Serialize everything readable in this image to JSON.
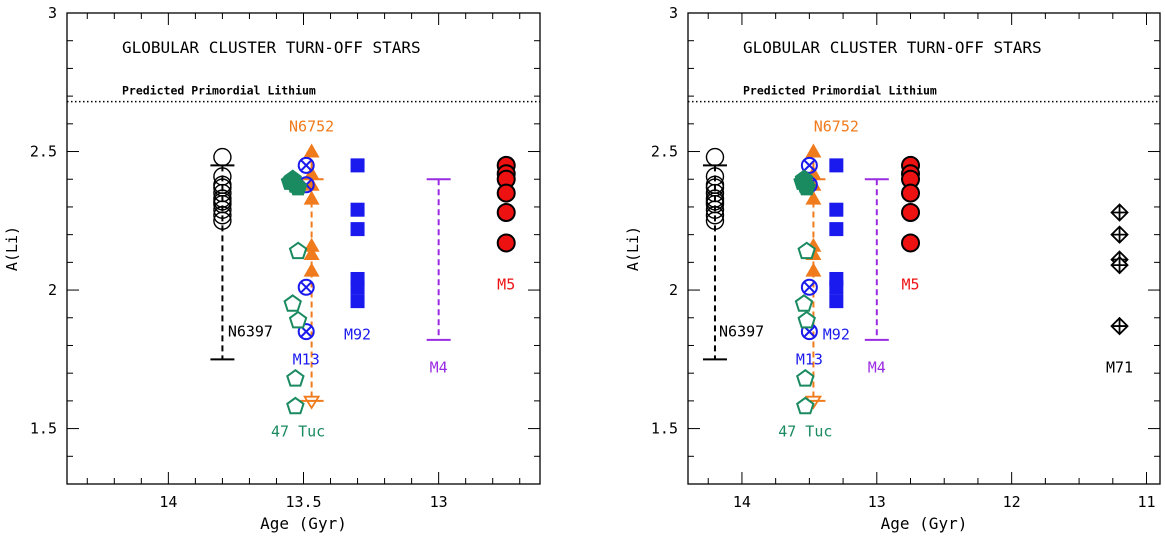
{
  "colors": {
    "axis": "#000000",
    "NGC6397": "#000000",
    "NGC6752": "#f07b1d",
    "M13": "#1a1aee",
    "M92": "#1a1aee",
    "M4": "#9a2be2",
    "M5": "#ee1111",
    "47Tuc": "#1a8a60",
    "M71": "#000000"
  },
  "chart_data": [
    {
      "type": "scatter",
      "title": "GLOBULAR CLUSTER TURN-OFF STARS",
      "xlabel": "Age (Gyr)",
      "ylabel": "A(Li)",
      "xlim": [
        14.375,
        12.625
      ],
      "ylim": [
        1.3,
        3.0
      ],
      "x_reversed": true,
      "x_ticks": [
        14,
        13.5,
        13
      ],
      "y_ticks": [
        1.5,
        2,
        2.5,
        3
      ],
      "grid": false,
      "reference_line": {
        "label": "Predicted Primordial Lithium",
        "y": 2.68
      },
      "series": [
        {
          "name": "N6397",
          "marker": "open-circle",
          "color_key": "NGC6397",
          "x": [
            13.8,
            13.8,
            13.8,
            13.8,
            13.8,
            13.8,
            13.8,
            13.8,
            13.8,
            13.8,
            13.8
          ],
          "y": [
            2.48,
            2.41,
            2.37,
            2.35,
            2.33,
            2.31,
            2.29,
            2.27,
            2.25,
            2.38,
            2.32
          ],
          "errorbar": {
            "x": 13.8,
            "lo": 1.75,
            "hi": 2.45,
            "style": "dashed"
          },
          "label": {
            "text": "N6397",
            "x": 13.78,
            "y": 1.85
          }
        },
        {
          "name": "N6752",
          "marker": "filled-triangle",
          "color_key": "NGC6752",
          "x": [
            13.47,
            13.47,
            13.47,
            13.47,
            13.47,
            13.47,
            13.47
          ],
          "y": [
            2.5,
            2.42,
            2.38,
            2.33,
            2.16,
            2.13,
            2.07
          ],
          "extra_marker": {
            "shape": "open-triangle-down",
            "x": 13.47,
            "y": 1.6
          },
          "errorbar": {
            "x": 13.47,
            "lo": 1.6,
            "hi": 2.5,
            "style": "dashed",
            "cap_y": 2.4
          },
          "label": {
            "text": "N6752",
            "x": 13.47,
            "y": 2.59
          }
        },
        {
          "name": "M13",
          "marker": "circle-x",
          "color_key": "M13",
          "x": [
            13.49,
            13.49,
            13.49,
            13.49
          ],
          "y": [
            2.45,
            2.38,
            2.01,
            1.85
          ],
          "label": {
            "text": "M13",
            "x": 13.49,
            "y": 1.75
          }
        },
        {
          "name": "M92",
          "marker": "filled-square",
          "color_key": "M92",
          "x": [
            13.3,
            13.3,
            13.3,
            13.3,
            13.3,
            13.3
          ],
          "y": [
            2.45,
            2.29,
            2.22,
            2.04,
            2.01,
            1.96
          ],
          "label": {
            "text": "M92",
            "x": 13.3,
            "y": 1.84
          }
        },
        {
          "name": "M4",
          "marker": "none",
          "color_key": "M4",
          "errorbar": {
            "x": 13.0,
            "lo": 1.82,
            "hi": 2.4,
            "style": "dashed"
          },
          "label": {
            "text": "M4",
            "x": 13.0,
            "y": 1.72
          }
        },
        {
          "name": "M5",
          "marker": "filled-circle",
          "color_key": "M5",
          "x": [
            12.75,
            12.75,
            12.75,
            12.75,
            12.75,
            12.75
          ],
          "y": [
            2.45,
            2.42,
            2.4,
            2.35,
            2.28,
            2.17
          ],
          "label": {
            "text": "M5",
            "x": 12.75,
            "y": 2.02
          }
        },
        {
          "name": "47 Tuc",
          "marker": "pentagon",
          "color_key": "47Tuc",
          "x": [
            13.54,
            13.53,
            13.55,
            13.52,
            13.52,
            13.54,
            13.52,
            13.53,
            13.53
          ],
          "y": [
            2.4,
            2.38,
            2.39,
            2.37,
            2.14,
            1.95,
            1.89,
            1.68,
            1.58
          ],
          "filled": [
            true,
            true,
            true,
            true,
            false,
            false,
            false,
            false,
            false
          ],
          "label": {
            "text": "47 Tuc",
            "x": 13.52,
            "y": 1.49
          }
        }
      ]
    },
    {
      "type": "scatter",
      "title": "GLOBULAR CLUSTER TURN-OFF STARS",
      "xlabel": "Age (Gyr)",
      "ylabel": "A(Li)",
      "xlim": [
        14.4,
        10.9
      ],
      "ylim": [
        1.3,
        3.0
      ],
      "x_reversed": true,
      "x_ticks": [
        14,
        13,
        12,
        11
      ],
      "y_ticks": [
        1.5,
        2,
        2.5,
        3
      ],
      "grid": false,
      "reference_line": {
        "label": "Predicted Primordial Lithium",
        "y": 2.68
      },
      "series": [
        {
          "name": "N6397",
          "marker": "open-circle",
          "color_key": "NGC6397",
          "x": [
            14.2,
            14.2,
            14.2,
            14.2,
            14.2,
            14.2,
            14.2,
            14.2,
            14.2,
            14.2,
            14.2
          ],
          "y": [
            2.48,
            2.41,
            2.37,
            2.35,
            2.33,
            2.31,
            2.29,
            2.27,
            2.25,
            2.38,
            2.32
          ],
          "errorbar": {
            "x": 14.2,
            "lo": 1.75,
            "hi": 2.45,
            "style": "dashed"
          },
          "label": {
            "text": "N6397",
            "x": 14.17,
            "y": 1.85
          }
        },
        {
          "name": "N6752",
          "marker": "filled-triangle",
          "color_key": "NGC6752",
          "x": [
            13.47,
            13.47,
            13.47,
            13.47,
            13.47,
            13.47,
            13.47
          ],
          "y": [
            2.5,
            2.42,
            2.38,
            2.33,
            2.16,
            2.13,
            2.07
          ],
          "extra_marker": {
            "shape": "open-triangle-down",
            "x": 13.47,
            "y": 1.6
          },
          "errorbar": {
            "x": 13.47,
            "lo": 1.6,
            "hi": 2.5,
            "style": "dashed",
            "cap_y": 2.4
          },
          "label": {
            "text": "N6752",
            "x": 13.3,
            "y": 2.59
          }
        },
        {
          "name": "M13",
          "marker": "circle-x",
          "color_key": "M13",
          "x": [
            13.5,
            13.5,
            13.5,
            13.5
          ],
          "y": [
            2.45,
            2.38,
            2.01,
            1.85
          ],
          "label": {
            "text": "M13",
            "x": 13.5,
            "y": 1.75
          }
        },
        {
          "name": "M92",
          "marker": "filled-square",
          "color_key": "M92",
          "x": [
            13.3,
            13.3,
            13.3,
            13.3,
            13.3,
            13.3
          ],
          "y": [
            2.45,
            2.29,
            2.22,
            2.04,
            2.01,
            1.96
          ],
          "label": {
            "text": "M92",
            "x": 13.3,
            "y": 1.84
          }
        },
        {
          "name": "M4",
          "marker": "none",
          "color_key": "M4",
          "errorbar": {
            "x": 13.0,
            "lo": 1.82,
            "hi": 2.4,
            "style": "dashed"
          },
          "label": {
            "text": "M4",
            "x": 13.0,
            "y": 1.72
          }
        },
        {
          "name": "M5",
          "marker": "filled-circle",
          "color_key": "M5",
          "x": [
            12.75,
            12.75,
            12.75,
            12.75,
            12.75,
            12.75
          ],
          "y": [
            2.45,
            2.42,
            2.4,
            2.35,
            2.28,
            2.17
          ],
          "label": {
            "text": "M5",
            "x": 12.75,
            "y": 2.02
          }
        },
        {
          "name": "47 Tuc",
          "marker": "pentagon",
          "color_key": "47Tuc",
          "x": [
            13.54,
            13.53,
            13.55,
            13.52,
            13.52,
            13.54,
            13.52,
            13.53,
            13.53
          ],
          "y": [
            2.4,
            2.38,
            2.39,
            2.37,
            2.14,
            1.95,
            1.89,
            1.68,
            1.58
          ],
          "filled": [
            true,
            true,
            true,
            true,
            false,
            false,
            false,
            false,
            false
          ],
          "label": {
            "text": "47 Tuc",
            "x": 13.53,
            "y": 1.49
          }
        },
        {
          "name": "M71",
          "marker": "diamond-plus",
          "color_key": "M71",
          "x": [
            11.2,
            11.2,
            11.2,
            11.2,
            11.2
          ],
          "y": [
            2.28,
            2.2,
            2.11,
            2.09,
            1.87
          ],
          "label": {
            "text": "M71",
            "x": 11.2,
            "y": 1.72
          }
        }
      ]
    }
  ]
}
